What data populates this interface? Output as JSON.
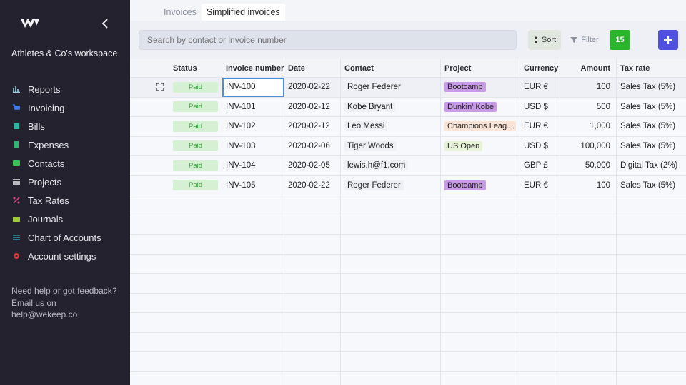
{
  "sidebar": {
    "workspace": "Athletes & Co's workspace",
    "items": [
      {
        "label": "Reports",
        "icon": "bar-chart-icon",
        "color": "#9ad0e0"
      },
      {
        "label": "Invoicing",
        "icon": "cart-icon",
        "color": "#3e7be8"
      },
      {
        "label": "Bills",
        "icon": "bills-icon",
        "color": "#2fb5a0"
      },
      {
        "label": "Expenses",
        "icon": "receipt-icon",
        "color": "#2fb572"
      },
      {
        "label": "Contacts",
        "icon": "contact-card-icon",
        "color": "#3cc05a"
      },
      {
        "label": "Projects",
        "icon": "list-icon",
        "color": "#e9e9ee"
      },
      {
        "label": "Tax Rates",
        "icon": "percent-icon",
        "color": "#e04a8a"
      },
      {
        "label": "Journals",
        "icon": "book-icon",
        "color": "#a0c83c"
      },
      {
        "label": "Chart of Accounts",
        "icon": "lines-icon",
        "color": "#3aa8c8"
      },
      {
        "label": "Account settings",
        "icon": "gear-icon",
        "color": "#e03a3a"
      }
    ],
    "help_line1": "Need help or got feedback?",
    "help_line2": "Email us on",
    "help_email": "help@wekeep.co"
  },
  "tabs": [
    {
      "label": "Invoices",
      "active": false
    },
    {
      "label": "Simplified invoices",
      "active": true
    }
  ],
  "toolbar": {
    "search_placeholder": "Search by contact or invoice number",
    "sort_label": "Sort",
    "filter_label": "Filter",
    "count": "15"
  },
  "table": {
    "headers": {
      "status": "Status",
      "invoice": "Invoice number",
      "date": "Date",
      "contact": "Contact",
      "project": "Project",
      "currency": "Currency",
      "amount": "Amount",
      "tax": "Tax rate"
    },
    "rows": [
      {
        "status": "Paid",
        "invoice": "INV-100",
        "date": "2020-02-22",
        "contact": "Roger Federer",
        "project": "Bootcamp",
        "project_color": "#c89ae8",
        "currency": "EUR €",
        "amount": "100",
        "tax": "Sales Tax (5%)"
      },
      {
        "status": "Paid",
        "invoice": "INV-101",
        "date": "2020-02-12",
        "contact": "Kobe Bryant",
        "project": "Dunkin' Kobe",
        "project_color": "#c89ae8",
        "currency": "USD $",
        "amount": "500",
        "tax": "Sales Tax (5%)"
      },
      {
        "status": "Paid",
        "invoice": "INV-102",
        "date": "2020-02-12",
        "contact": "Leo Messi",
        "project": "Champions Leag...",
        "project_color": "#fbe3d6",
        "currency": "EUR €",
        "amount": "1,000",
        "tax": "Sales Tax (5%)"
      },
      {
        "status": "Paid",
        "invoice": "INV-103",
        "date": "2020-02-06",
        "contact": "Tiger Woods",
        "project": "US Open",
        "project_color": "#e7f3d9",
        "currency": "USD $",
        "amount": "100,000",
        "tax": "Sales Tax (5%)"
      },
      {
        "status": "Paid",
        "invoice": "INV-104",
        "date": "2020-02-05",
        "contact": "lewis.h@f1.com",
        "project": "",
        "project_color": "",
        "currency": "GBP £",
        "amount": "50,000",
        "tax": "Digital Tax (2%)"
      },
      {
        "status": "Paid",
        "invoice": "INV-105",
        "date": "2020-02-22",
        "contact": "Roger Federer",
        "project": "Bootcamp",
        "project_color": "#c89ae8",
        "currency": "EUR €",
        "amount": "100",
        "tax": "Sales Tax (5%)"
      }
    ],
    "empty_rows": 10
  }
}
